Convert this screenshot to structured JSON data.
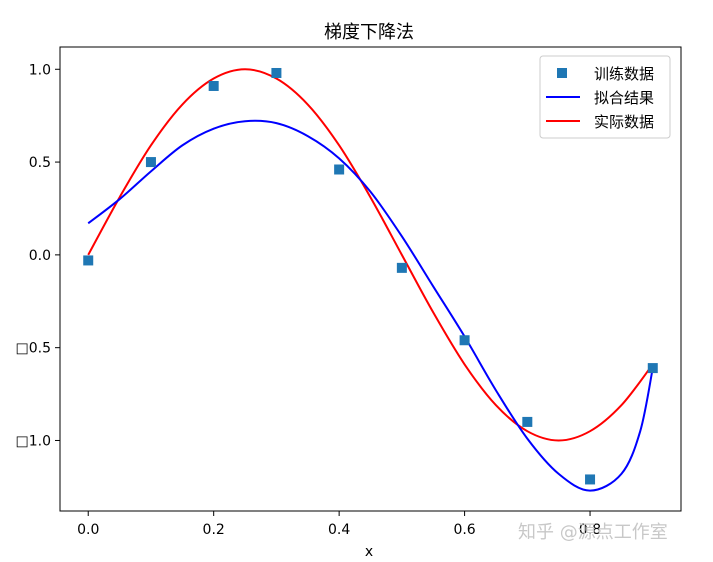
{
  "chart_data": {
    "type": "scatter+line",
    "title": "梯度下降法",
    "xlabel": "x",
    "ylabel": "",
    "xlim": [
      -0.045,
      0.945
    ],
    "ylim": [
      -1.38,
      1.12
    ],
    "xticks": [
      0.0,
      0.2,
      0.4,
      0.6,
      0.8
    ],
    "xtick_labels": [
      "0.0",
      "0.2",
      "0.4",
      "0.6",
      "0.8"
    ],
    "yticks": [
      1.0,
      0.5,
      0.0,
      -0.5,
      -1.0
    ],
    "ytick_labels": [
      "1.0",
      "0.5",
      "0.0",
      "□0.5",
      "□1.0"
    ],
    "grid": false,
    "legend_position": "top-right",
    "series": [
      {
        "name": "训练数据",
        "kind": "scatter",
        "marker": "square",
        "color": "#1f77b4",
        "x": [
          0.0,
          0.1,
          0.2,
          0.3,
          0.4,
          0.5,
          0.6,
          0.7,
          0.8,
          0.9
        ],
        "y": [
          -0.03,
          0.5,
          0.91,
          0.98,
          0.46,
          -0.07,
          -0.46,
          -0.9,
          -1.21,
          -0.61
        ]
      },
      {
        "name": "拟合结果",
        "kind": "line",
        "color": "#0000ff",
        "x": [
          0.0,
          0.05,
          0.1,
          0.15,
          0.2,
          0.25,
          0.3,
          0.35,
          0.4,
          0.45,
          0.5,
          0.55,
          0.6,
          0.65,
          0.7,
          0.75,
          0.8,
          0.85,
          0.88,
          0.9
        ],
        "y": [
          0.17,
          0.3,
          0.45,
          0.59,
          0.68,
          0.72,
          0.71,
          0.64,
          0.52,
          0.34,
          0.1,
          -0.17,
          -0.44,
          -0.73,
          -0.99,
          -1.18,
          -1.27,
          -1.18,
          -0.95,
          -0.61
        ]
      },
      {
        "name": "实际数据",
        "kind": "line",
        "color": "#ff0000",
        "x": [
          0.0,
          0.05,
          0.1,
          0.15,
          0.2,
          0.25,
          0.3,
          0.35,
          0.4,
          0.45,
          0.5,
          0.55,
          0.6,
          0.65,
          0.7,
          0.75,
          0.8,
          0.85,
          0.9
        ],
        "y": [
          0.0,
          0.31,
          0.59,
          0.81,
          0.95,
          1.0,
          0.95,
          0.81,
          0.59,
          0.31,
          0.0,
          -0.31,
          -0.59,
          -0.81,
          -0.95,
          -1.0,
          -0.95,
          -0.81,
          -0.59
        ]
      }
    ]
  },
  "watermark": "知乎 @源点工作室"
}
